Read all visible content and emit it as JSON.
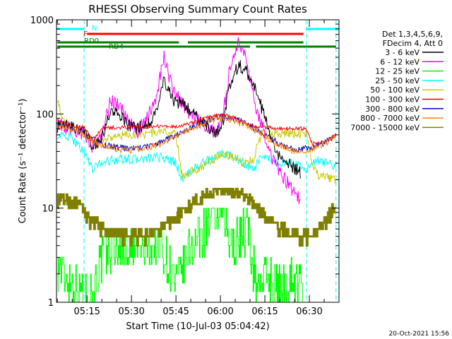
{
  "chart_data": {
    "type": "line",
    "title": "RHESSI Observing Summary Count Rates",
    "xlabel": "Start Time (10-Jul-03 05:04:42)",
    "ylabel": "Count Rate (s⁻¹ detector⁻¹)",
    "y_scale": "log",
    "ylim": [
      1,
      1000
    ],
    "xlim": [
      "05:04:42",
      "06:40:00"
    ],
    "x_ticks": [
      "05:15",
      "05:30",
      "05:45",
      "06:00",
      "06:15",
      "06:30"
    ],
    "y_ticks": [
      "1",
      "10",
      "100",
      "1000"
    ],
    "grid": false,
    "legend_placement": "right",
    "legend_header": [
      "Det 1,3,4,5,6,9,",
      "FDecim 4, Att 0"
    ],
    "footer_timestamp": "20-Oct-2021 15:56",
    "flags": [
      {
        "name": "N",
        "color": "#00ffff",
        "intervals": [
          [
            "05:04:42",
            "05:14:00"
          ],
          [
            "06:29:00",
            "06:40:00"
          ]
        ]
      },
      {
        "name": "F",
        "color": "#ff0000",
        "intervals": [
          [
            "05:15:00",
            "06:28:00"
          ]
        ]
      },
      {
        "name": "RD0",
        "color": "#008000",
        "intervals": [
          [
            "05:05:00",
            "05:46:00"
          ],
          [
            "05:49:00",
            "06:28:00"
          ]
        ]
      },
      {
        "name": "RD4",
        "color": "#008000",
        "intervals": [
          [
            "05:05:00",
            "06:10:00"
          ],
          [
            "06:12:00",
            "06:39:00"
          ]
        ]
      }
    ],
    "dashed_verticals": [
      "05:14:00",
      "06:29:00",
      "06:39:00"
    ],
    "series": [
      {
        "name": "3 - 6 keV",
        "color": "#000000",
        "values": [
          [
            "05:05",
            75
          ],
          [
            "05:10",
            72
          ],
          [
            "05:14",
            65
          ],
          [
            "05:17",
            45
          ],
          [
            "05:20",
            55
          ],
          [
            "05:23",
            110
          ],
          [
            "05:26",
            95
          ],
          [
            "05:29",
            75
          ],
          [
            "05:32",
            70
          ],
          [
            "05:35",
            78
          ],
          [
            "05:38",
            95
          ],
          [
            "05:41",
            230
          ],
          [
            "05:44",
            140
          ],
          [
            "05:47",
            130
          ],
          [
            "05:50",
            110
          ],
          [
            "05:53",
            90
          ],
          [
            "05:56",
            70
          ],
          [
            "05:59",
            65
          ],
          [
            "06:01",
            90
          ],
          [
            "06:03",
            200
          ],
          [
            "06:06",
            330
          ],
          [
            "06:09",
            280
          ],
          [
            "06:12",
            180
          ],
          [
            "06:15",
            90
          ],
          [
            "06:18",
            45
          ],
          [
            "06:21",
            30
          ],
          [
            "06:24",
            28
          ],
          [
            "06:27",
            24
          ]
        ]
      },
      {
        "name": "6 - 12 keV",
        "color": "#ff00ff",
        "values": [
          [
            "05:05",
            75
          ],
          [
            "05:10",
            70
          ],
          [
            "05:14",
            60
          ],
          [
            "05:17",
            45
          ],
          [
            "05:20",
            60
          ],
          [
            "05:23",
            140
          ],
          [
            "05:26",
            120
          ],
          [
            "05:29",
            80
          ],
          [
            "05:32",
            65
          ],
          [
            "05:35",
            85
          ],
          [
            "05:38",
            140
          ],
          [
            "05:41",
            420
          ],
          [
            "05:44",
            170
          ],
          [
            "05:47",
            130
          ],
          [
            "05:50",
            100
          ],
          [
            "05:53",
            85
          ],
          [
            "05:56",
            70
          ],
          [
            "05:59",
            65
          ],
          [
            "06:01",
            100
          ],
          [
            "06:03",
            280
          ],
          [
            "06:06",
            580
          ],
          [
            "06:09",
            350
          ],
          [
            "06:12",
            120
          ],
          [
            "06:15",
            60
          ],
          [
            "06:18",
            30
          ],
          [
            "06:21",
            22
          ],
          [
            "06:24",
            16
          ],
          [
            "06:27",
            12
          ]
        ]
      },
      {
        "name": "12 - 25 keV",
        "color": "#00ff00",
        "values": [
          [
            "05:05",
            2.5
          ],
          [
            "05:10",
            1.6
          ],
          [
            "05:14",
            1.2
          ],
          [
            "05:17",
            1.4
          ],
          [
            "05:20",
            3.0
          ],
          [
            "05:25",
            4.0
          ],
          [
            "05:30",
            3.5
          ],
          [
            "05:35",
            3.8
          ],
          [
            "05:40",
            4.0
          ],
          [
            "05:45",
            1.5
          ],
          [
            "05:50",
            4.0
          ],
          [
            "05:55",
            6.0
          ],
          [
            "06:00",
            10.0
          ],
          [
            "06:03",
            4.0
          ],
          [
            "06:06",
            5.0
          ],
          [
            "06:09",
            6.0
          ],
          [
            "06:12",
            1.5
          ],
          [
            "06:16",
            2.0
          ],
          [
            "06:20",
            1.4
          ],
          [
            "06:24",
            2.0
          ],
          [
            "06:28",
            1.3
          ]
        ]
      },
      {
        "name": "25 - 50 keV",
        "color": "#00ffff",
        "values": [
          [
            "05:05",
            60
          ],
          [
            "05:10",
            55
          ],
          [
            "05:14",
            40
          ],
          [
            "05:17",
            25
          ],
          [
            "05:19",
            30
          ],
          [
            "05:25",
            33
          ],
          [
            "05:30",
            33
          ],
          [
            "05:35",
            33
          ],
          [
            "05:40",
            35
          ],
          [
            "05:45",
            30
          ],
          [
            "05:47",
            20
          ],
          [
            "05:52",
            28
          ],
          [
            "05:56",
            32
          ],
          [
            "06:00",
            38
          ],
          [
            "06:04",
            36
          ],
          [
            "06:08",
            30
          ],
          [
            "06:11",
            25
          ],
          [
            "06:14",
            35
          ],
          [
            "06:20",
            30
          ],
          [
            "06:26",
            30
          ],
          [
            "06:29",
            25
          ],
          [
            "06:32",
            32
          ],
          [
            "06:36",
            30
          ],
          [
            "06:39",
            28
          ]
        ]
      },
      {
        "name": "50 - 100 keV",
        "color": "#c8c800",
        "values": [
          [
            "05:05",
            150
          ],
          [
            "05:07",
            80
          ],
          [
            "05:10",
            72
          ],
          [
            "05:14",
            68
          ],
          [
            "05:17",
            50
          ],
          [
            "05:20",
            55
          ],
          [
            "05:25",
            58
          ],
          [
            "05:30",
            60
          ],
          [
            "05:35",
            62
          ],
          [
            "05:40",
            65
          ],
          [
            "05:45",
            60
          ],
          [
            "05:47",
            22
          ],
          [
            "05:52",
            26
          ],
          [
            "05:56",
            30
          ],
          [
            "06:00",
            38
          ],
          [
            "06:04",
            35
          ],
          [
            "06:08",
            30
          ],
          [
            "06:11",
            33
          ],
          [
            "06:14",
            62
          ],
          [
            "06:20",
            62
          ],
          [
            "06:26",
            62
          ],
          [
            "06:29",
            62
          ],
          [
            "06:31",
            30
          ],
          [
            "06:33",
            22
          ],
          [
            "06:39",
            20
          ]
        ]
      },
      {
        "name": "100 - 300 keV",
        "color": "#ff0000",
        "values": [
          [
            "05:05",
            90
          ],
          [
            "05:08",
            76
          ],
          [
            "05:14",
            72
          ],
          [
            "05:17",
            52
          ],
          [
            "05:20",
            70
          ],
          [
            "05:25",
            72
          ],
          [
            "05:30",
            72
          ],
          [
            "05:35",
            73
          ],
          [
            "05:40",
            74
          ],
          [
            "05:45",
            74
          ],
          [
            "05:50",
            80
          ],
          [
            "05:55",
            90
          ],
          [
            "06:00",
            100
          ],
          [
            "06:05",
            90
          ],
          [
            "06:10",
            75
          ],
          [
            "06:15",
            72
          ],
          [
            "06:20",
            70
          ],
          [
            "06:26",
            70
          ],
          [
            "06:29",
            70
          ],
          [
            "06:31",
            48
          ],
          [
            "06:35",
            50
          ],
          [
            "06:39",
            60
          ]
        ]
      },
      {
        "name": "300 - 800 keV",
        "color": "#0000c8",
        "values": [
          [
            "05:05",
            78
          ],
          [
            "05:08",
            74
          ],
          [
            "05:12",
            68
          ],
          [
            "05:15",
            58
          ],
          [
            "05:20",
            48
          ],
          [
            "05:25",
            44
          ],
          [
            "05:30",
            43
          ],
          [
            "05:35",
            45
          ],
          [
            "05:40",
            50
          ],
          [
            "05:45",
            60
          ],
          [
            "05:50",
            72
          ],
          [
            "05:55",
            85
          ],
          [
            "06:00",
            93
          ],
          [
            "06:05",
            88
          ],
          [
            "06:10",
            75
          ],
          [
            "06:15",
            60
          ],
          [
            "06:20",
            48
          ],
          [
            "06:25",
            42
          ],
          [
            "06:30",
            43
          ],
          [
            "06:35",
            50
          ],
          [
            "06:39",
            60
          ]
        ]
      },
      {
        "name": "800 - 7000 keV",
        "color": "#ff8000",
        "values": [
          [
            "05:05",
            75
          ],
          [
            "05:08",
            72
          ],
          [
            "05:12",
            66
          ],
          [
            "05:15",
            56
          ],
          [
            "05:20",
            46
          ],
          [
            "05:25",
            42
          ],
          [
            "05:30",
            41
          ],
          [
            "05:35",
            43
          ],
          [
            "05:40",
            48
          ],
          [
            "05:45",
            58
          ],
          [
            "05:50",
            70
          ],
          [
            "05:55",
            82
          ],
          [
            "06:00",
            90
          ],
          [
            "06:05",
            85
          ],
          [
            "06:10",
            72
          ],
          [
            "06:15",
            58
          ],
          [
            "06:20",
            46
          ],
          [
            "06:25",
            40
          ],
          [
            "06:30",
            41
          ],
          [
            "06:35",
            48
          ],
          [
            "06:39",
            58
          ]
        ]
      },
      {
        "name": "7000 - 15000 keV",
        "color": "#808000",
        "values": [
          [
            "05:05",
            12
          ],
          [
            "05:08",
            12
          ],
          [
            "05:12",
            11
          ],
          [
            "05:15",
            8
          ],
          [
            "05:20",
            6
          ],
          [
            "05:25",
            5
          ],
          [
            "05:30",
            5
          ],
          [
            "05:35",
            5
          ],
          [
            "05:40",
            6
          ],
          [
            "05:45",
            8
          ],
          [
            "05:50",
            11
          ],
          [
            "05:55",
            14
          ],
          [
            "06:00",
            16
          ],
          [
            "06:05",
            15
          ],
          [
            "06:10",
            12
          ],
          [
            "06:15",
            8
          ],
          [
            "06:20",
            6
          ],
          [
            "06:25",
            5
          ],
          [
            "06:30",
            5
          ],
          [
            "06:35",
            7
          ],
          [
            "06:39",
            11
          ]
        ]
      }
    ]
  }
}
